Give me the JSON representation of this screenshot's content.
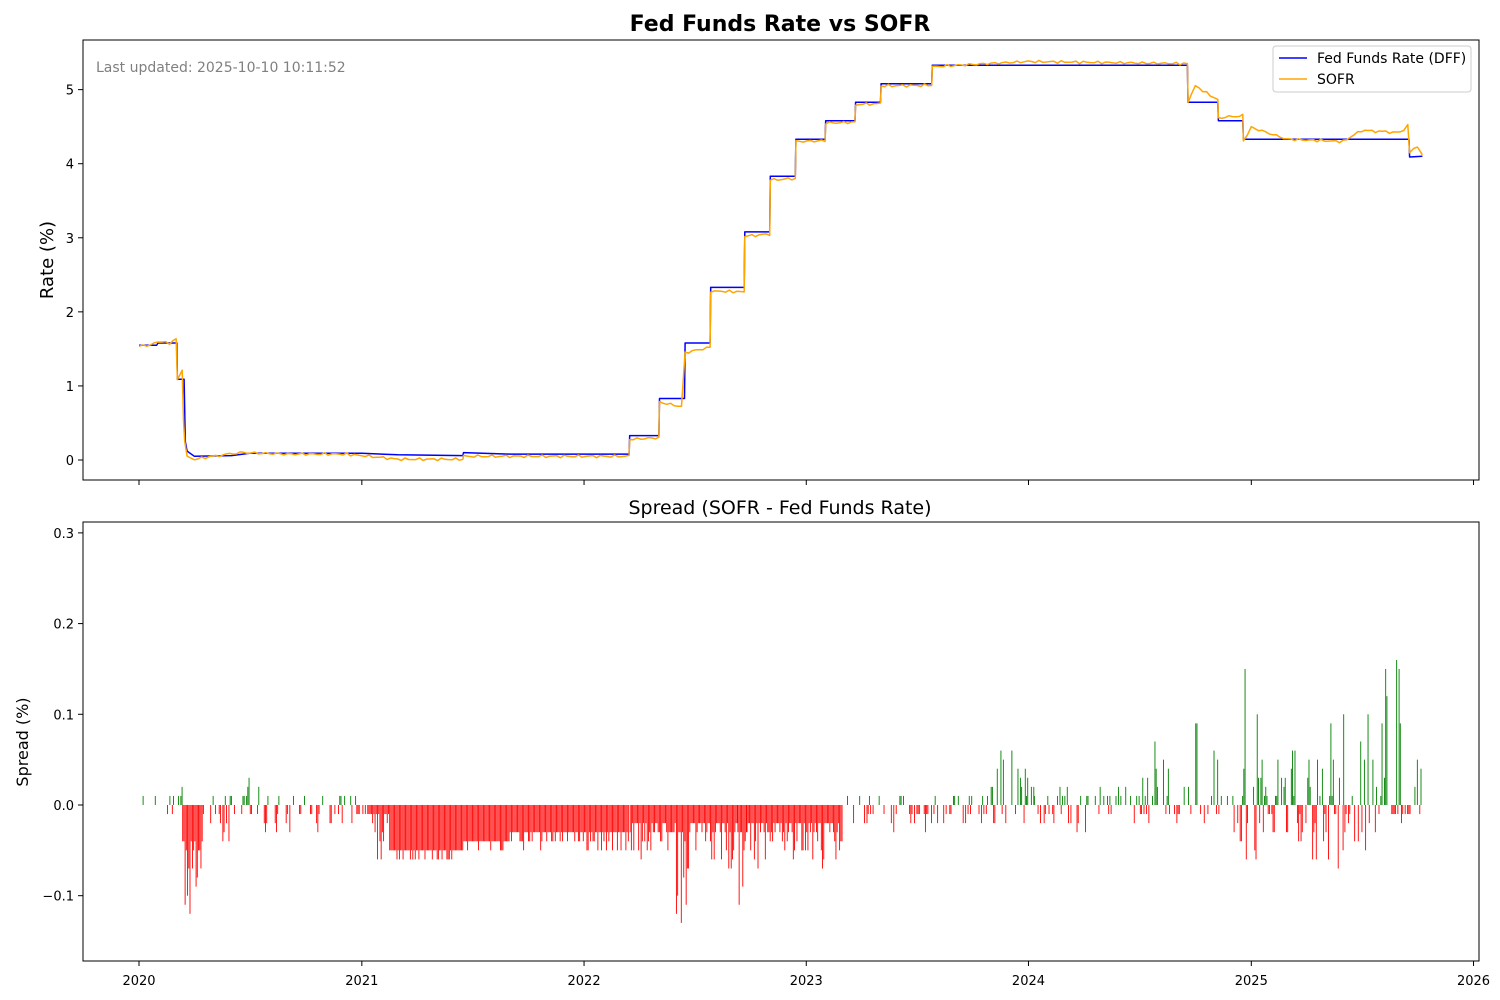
{
  "chart_data": [
    {
      "type": "line",
      "title": "Fed Funds Rate vs SOFR",
      "annotation": "Last updated: 2025-10-10 10:11:52",
      "xlabel": "",
      "ylabel": "Rate (%)",
      "xlim": [
        "2019-10-01",
        "2026-01-10"
      ],
      "ylim": [
        -0.27,
        5.67
      ],
      "yticks": [
        0,
        1,
        2,
        3,
        4,
        5
      ],
      "xticks": [
        "2020-01-01",
        "2021-01-01",
        "2022-01-01",
        "2023-01-01",
        "2024-01-01",
        "2025-01-01",
        "2026-01-01"
      ],
      "grid": false,
      "legend": "top-right",
      "series": [
        {
          "name": "Fed Funds Rate (DFF)",
          "color": "#0000ff",
          "points": [
            [
              "2020-01-01",
              1.55
            ],
            [
              "2020-01-30",
              1.55
            ],
            [
              "2020-02-01",
              1.58
            ],
            [
              "2020-03-03",
              1.58
            ],
            [
              "2020-03-04",
              1.09
            ],
            [
              "2020-03-15",
              1.09
            ],
            [
              "2020-03-17",
              0.25
            ],
            [
              "2020-03-20",
              0.12
            ],
            [
              "2020-04-01",
              0.05
            ],
            [
              "2020-06-01",
              0.06
            ],
            [
              "2020-07-01",
              0.09
            ],
            [
              "2020-10-01",
              0.09
            ],
            [
              "2021-01-01",
              0.09
            ],
            [
              "2021-03-01",
              0.07
            ],
            [
              "2021-06-16",
              0.06
            ],
            [
              "2021-06-17",
              0.1
            ],
            [
              "2021-09-01",
              0.08
            ],
            [
              "2022-03-16",
              0.08
            ],
            [
              "2022-03-17",
              0.33
            ],
            [
              "2022-05-04",
              0.33
            ],
            [
              "2022-05-05",
              0.83
            ],
            [
              "2022-06-15",
              0.83
            ],
            [
              "2022-06-16",
              1.58
            ],
            [
              "2022-07-27",
              1.58
            ],
            [
              "2022-07-28",
              2.33
            ],
            [
              "2022-09-21",
              2.33
            ],
            [
              "2022-09-22",
              3.08
            ],
            [
              "2022-11-02",
              3.08
            ],
            [
              "2022-11-03",
              3.83
            ],
            [
              "2022-12-14",
              3.83
            ],
            [
              "2022-12-15",
              4.33
            ],
            [
              "2023-02-01",
              4.33
            ],
            [
              "2023-02-02",
              4.58
            ],
            [
              "2023-03-22",
              4.58
            ],
            [
              "2023-03-23",
              4.83
            ],
            [
              "2023-05-03",
              4.83
            ],
            [
              "2023-05-04",
              5.08
            ],
            [
              "2023-07-26",
              5.08
            ],
            [
              "2023-07-27",
              5.33
            ],
            [
              "2024-09-18",
              5.33
            ],
            [
              "2024-09-19",
              4.83
            ],
            [
              "2024-11-07",
              4.83
            ],
            [
              "2024-11-08",
              4.58
            ],
            [
              "2024-12-18",
              4.58
            ],
            [
              "2024-12-19",
              4.33
            ],
            [
              "2025-09-17",
              4.33
            ],
            [
              "2025-09-18",
              4.09
            ],
            [
              "2025-10-09",
              4.1
            ]
          ]
        },
        {
          "name": "SOFR",
          "color": "#ffa500",
          "points": [
            [
              "2020-01-01",
              1.54
            ],
            [
              "2020-01-20",
              1.55
            ],
            [
              "2020-02-01",
              1.6
            ],
            [
              "2020-02-20",
              1.58
            ],
            [
              "2020-03-02",
              1.63
            ],
            [
              "2020-03-04",
              1.1
            ],
            [
              "2020-03-12",
              1.2
            ],
            [
              "2020-03-14",
              0.55
            ],
            [
              "2020-03-16",
              0.25
            ],
            [
              "2020-03-20",
              0.04
            ],
            [
              "2020-04-01",
              0.01
            ],
            [
              "2020-05-01",
              0.05
            ],
            [
              "2020-06-15",
              0.1
            ],
            [
              "2020-09-01",
              0.08
            ],
            [
              "2020-12-01",
              0.08
            ],
            [
              "2021-01-01",
              0.06
            ],
            [
              "2021-03-01",
              0.01
            ],
            [
              "2021-06-16",
              0.01
            ],
            [
              "2021-06-17",
              0.05
            ],
            [
              "2021-09-01",
              0.05
            ],
            [
              "2022-03-16",
              0.05
            ],
            [
              "2022-03-17",
              0.28
            ],
            [
              "2022-05-04",
              0.3
            ],
            [
              "2022-05-05",
              0.78
            ],
            [
              "2022-06-10",
              0.72
            ],
            [
              "2022-06-16",
              1.45
            ],
            [
              "2022-07-27",
              1.52
            ],
            [
              "2022-07-28",
              2.28
            ],
            [
              "2022-09-21",
              2.27
            ],
            [
              "2022-09-22",
              3.02
            ],
            [
              "2022-11-02",
              3.05
            ],
            [
              "2022-11-03",
              3.78
            ],
            [
              "2022-12-14",
              3.8
            ],
            [
              "2022-12-15",
              4.3
            ],
            [
              "2023-02-01",
              4.31
            ],
            [
              "2023-02-02",
              4.55
            ],
            [
              "2023-03-22",
              4.56
            ],
            [
              "2023-03-23",
              4.8
            ],
            [
              "2023-05-03",
              4.81
            ],
            [
              "2023-05-04",
              5.05
            ],
            [
              "2023-07-26",
              5.06
            ],
            [
              "2023-07-27",
              5.31
            ],
            [
              "2023-12-31",
              5.38
            ],
            [
              "2024-06-30",
              5.36
            ],
            [
              "2024-09-18",
              5.35
            ],
            [
              "2024-09-19",
              4.84
            ],
            [
              "2024-10-01",
              5.05
            ],
            [
              "2024-11-07",
              4.86
            ],
            [
              "2024-11-08",
              4.62
            ],
            [
              "2024-12-18",
              4.65
            ],
            [
              "2024-12-19",
              4.3
            ],
            [
              "2025-01-01",
              4.49
            ],
            [
              "2025-03-01",
              4.33
            ],
            [
              "2025-06-01",
              4.3
            ],
            [
              "2025-07-01",
              4.45
            ],
            [
              "2025-09-02",
              4.42
            ],
            [
              "2025-09-15",
              4.51
            ],
            [
              "2025-09-18",
              4.15
            ],
            [
              "2025-10-01",
              4.24
            ],
            [
              "2025-10-09",
              4.12
            ]
          ]
        }
      ]
    },
    {
      "type": "bar",
      "title": "Spread (SOFR - Fed Funds Rate)",
      "xlabel": "",
      "ylabel": "Spread (%)",
      "xlim": [
        "2019-10-01",
        "2026-01-10"
      ],
      "ylim": [
        -0.172,
        0.312
      ],
      "yticks": [
        -0.1,
        0.0,
        0.1,
        0.2,
        0.3
      ],
      "ytick_labels": [
        "−0.1",
        "0.0",
        "0.1",
        "0.2",
        "0.3"
      ],
      "xtick_labels": [
        "2020",
        "2021",
        "2022",
        "2023",
        "2024",
        "2025",
        "2026"
      ],
      "grid": false,
      "positive_color": "#008000",
      "negative_color": "#ff0000",
      "segments": [
        [
          "2020-01-01",
          "2020-03-01",
          -0.01,
          0.01,
          1
        ],
        [
          "2020-03-01",
          "2020-03-12",
          0.0,
          0.06,
          2
        ],
        [
          "2020-03-12",
          "2020-04-15",
          -0.15,
          -0.04,
          3
        ],
        [
          "2020-04-15",
          "2020-06-01",
          -0.04,
          0.01,
          4
        ],
        [
          "2020-06-01",
          "2020-07-20",
          -0.01,
          0.03,
          5
        ],
        [
          "2020-07-20",
          "2020-11-15",
          -0.03,
          0.01,
          6
        ],
        [
          "2020-11-15",
          "2021-01-10",
          -0.02,
          0.01,
          7
        ],
        [
          "2021-01-10",
          "2021-02-15",
          -0.06,
          -0.01,
          8
        ],
        [
          "2021-02-15",
          "2021-06-16",
          -0.06,
          -0.05,
          9
        ],
        [
          "2021-06-17",
          "2021-09-01",
          -0.05,
          -0.04,
          10
        ],
        [
          "2021-09-01",
          "2022-03-16",
          -0.05,
          -0.03,
          11
        ],
        [
          "2022-03-17",
          "2022-06-01",
          -0.06,
          -0.02,
          12
        ],
        [
          "2022-06-01",
          "2022-06-25",
          -0.14,
          -0.03,
          13
        ],
        [
          "2022-06-25",
          "2022-09-10",
          -0.07,
          -0.02,
          14
        ],
        [
          "2022-09-10",
          "2022-09-25",
          -0.12,
          -0.03,
          15
        ],
        [
          "2022-09-25",
          "2023-03-01",
          -0.07,
          -0.02,
          16
        ],
        [
          "2023-03-01",
          "2023-10-31",
          -0.03,
          0.01,
          17
        ],
        [
          "2023-10-31",
          "2024-01-10",
          -0.02,
          0.07,
          18
        ],
        [
          "2024-01-10",
          "2024-06-30",
          -0.03,
          0.02,
          19
        ],
        [
          "2024-06-30",
          "2024-09-18",
          -0.02,
          0.07,
          20
        ],
        [
          "2024-09-19",
          "2024-10-15",
          -0.01,
          0.13,
          21
        ],
        [
          "2024-10-15",
          "2024-12-01",
          -0.02,
          0.06,
          22
        ],
        [
          "2024-12-01",
          "2025-01-20",
          -0.06,
          0.16,
          23
        ],
        [
          "2025-01-20",
          "2025-04-01",
          -0.04,
          0.06,
          24
        ],
        [
          "2025-04-01",
          "2025-06-01",
          -0.07,
          0.09,
          25
        ],
        [
          "2025-06-01",
          "2025-08-01",
          -0.05,
          0.11,
          26
        ],
        [
          "2025-08-01",
          "2025-10-09",
          -0.02,
          0.18,
          27
        ]
      ]
    }
  ]
}
